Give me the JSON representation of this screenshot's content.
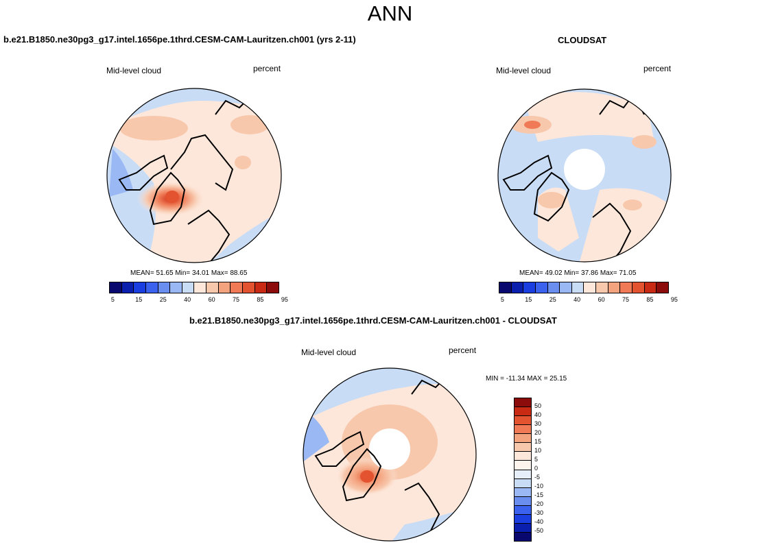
{
  "figure": {
    "title": "ANN",
    "model_title": "b.e21.B1850.ne30pg3_g17.intel.1656pe.1thrd.CESM-CAM-Lauritzen.ch001 (yrs 2-11)",
    "obs_title": "CLOUDSAT",
    "diff_title": "b.e21.B1850.ne30pg3_g17.intel.1656pe.1thrd.CESM-CAM-Lauritzen.ch001 - CLOUDSAT"
  },
  "panels": {
    "model": {
      "variable": "Mid-level cloud",
      "units": "percent",
      "stats": "MEAN=  51.65  Min=  34.01  Max=  88.65"
    },
    "obs": {
      "variable": "Mid-level cloud",
      "units": "percent",
      "stats": "MEAN=  49.02  Min=  37.86  Max=  71.05"
    },
    "diff": {
      "variable": "Mid-level cloud",
      "units": "percent",
      "stats": "MIN = -11.34 MAX =  25.15"
    }
  },
  "colors": {
    "abs_scale": [
      "#08086e",
      "#0a1fae",
      "#1a3ee0",
      "#3a62ee",
      "#6a8ef0",
      "#9ab8f3",
      "#c8dcf6",
      "#fde7da",
      "#f8c8ad",
      "#f4a37f",
      "#ef7a55",
      "#e4532f",
      "#c92a13",
      "#8b0c0a"
    ],
    "diff_scale": [
      "#8b0c0a",
      "#c92a13",
      "#e4532f",
      "#ef7a55",
      "#f4a37f",
      "#f8c8ad",
      "#fde7da",
      "#fdf4ee",
      "#e6eefa",
      "#c8dcf6",
      "#9ab8f3",
      "#6a8ef0",
      "#3a62ee",
      "#1a3ee0",
      "#0a1fae",
      "#08086e"
    ],
    "missing": "#ffffff"
  },
  "chart_data": [
    {
      "type": "heatmap",
      "projection": "north-polar-stereographic",
      "title": "b.e21.B1850.ne30pg3_g17.intel.1656pe.1thrd.CESM-CAM-Lauritzen.ch001 (yrs 2-11)",
      "variable": "Mid-level cloud",
      "units": "percent",
      "mean": 51.65,
      "min": 34.01,
      "max": 88.65,
      "contour_levels": [
        5,
        10,
        15,
        20,
        25,
        30,
        40,
        50,
        60,
        70,
        75,
        80,
        85,
        90,
        95
      ],
      "colorbar_labels": [
        "5",
        "15",
        "25",
        "40",
        "60",
        "75",
        "85",
        "95"
      ]
    },
    {
      "type": "heatmap",
      "projection": "north-polar-stereographic",
      "title": "CLOUDSAT",
      "variable": "Mid-level cloud",
      "units": "percent",
      "mean": 49.02,
      "min": 37.86,
      "max": 71.05,
      "contour_levels": [
        5,
        10,
        15,
        20,
        25,
        30,
        40,
        50,
        60,
        70,
        75,
        80,
        85,
        90,
        95
      ],
      "colorbar_labels": [
        "5",
        "15",
        "25",
        "40",
        "60",
        "75",
        "85",
        "95"
      ],
      "missing_region": "pole"
    },
    {
      "type": "heatmap",
      "projection": "north-polar-stereographic",
      "title": "b.e21.B1850.ne30pg3_g17.intel.1656pe.1thrd.CESM-CAM-Lauritzen.ch001 - CLOUDSAT",
      "variable": "Mid-level cloud",
      "units": "percent",
      "min": -11.34,
      "max": 25.15,
      "contour_levels": [
        -50,
        -40,
        -30,
        -20,
        -15,
        -10,
        -5,
        0,
        5,
        10,
        15,
        20,
        30,
        40,
        50
      ],
      "colorbar_labels": [
        "50",
        "40",
        "30",
        "20",
        "15",
        "10",
        "5",
        "0",
        "-5",
        "-10",
        "-15",
        "-20",
        "-30",
        "-40",
        "-50"
      ],
      "missing_region": "pole"
    }
  ]
}
